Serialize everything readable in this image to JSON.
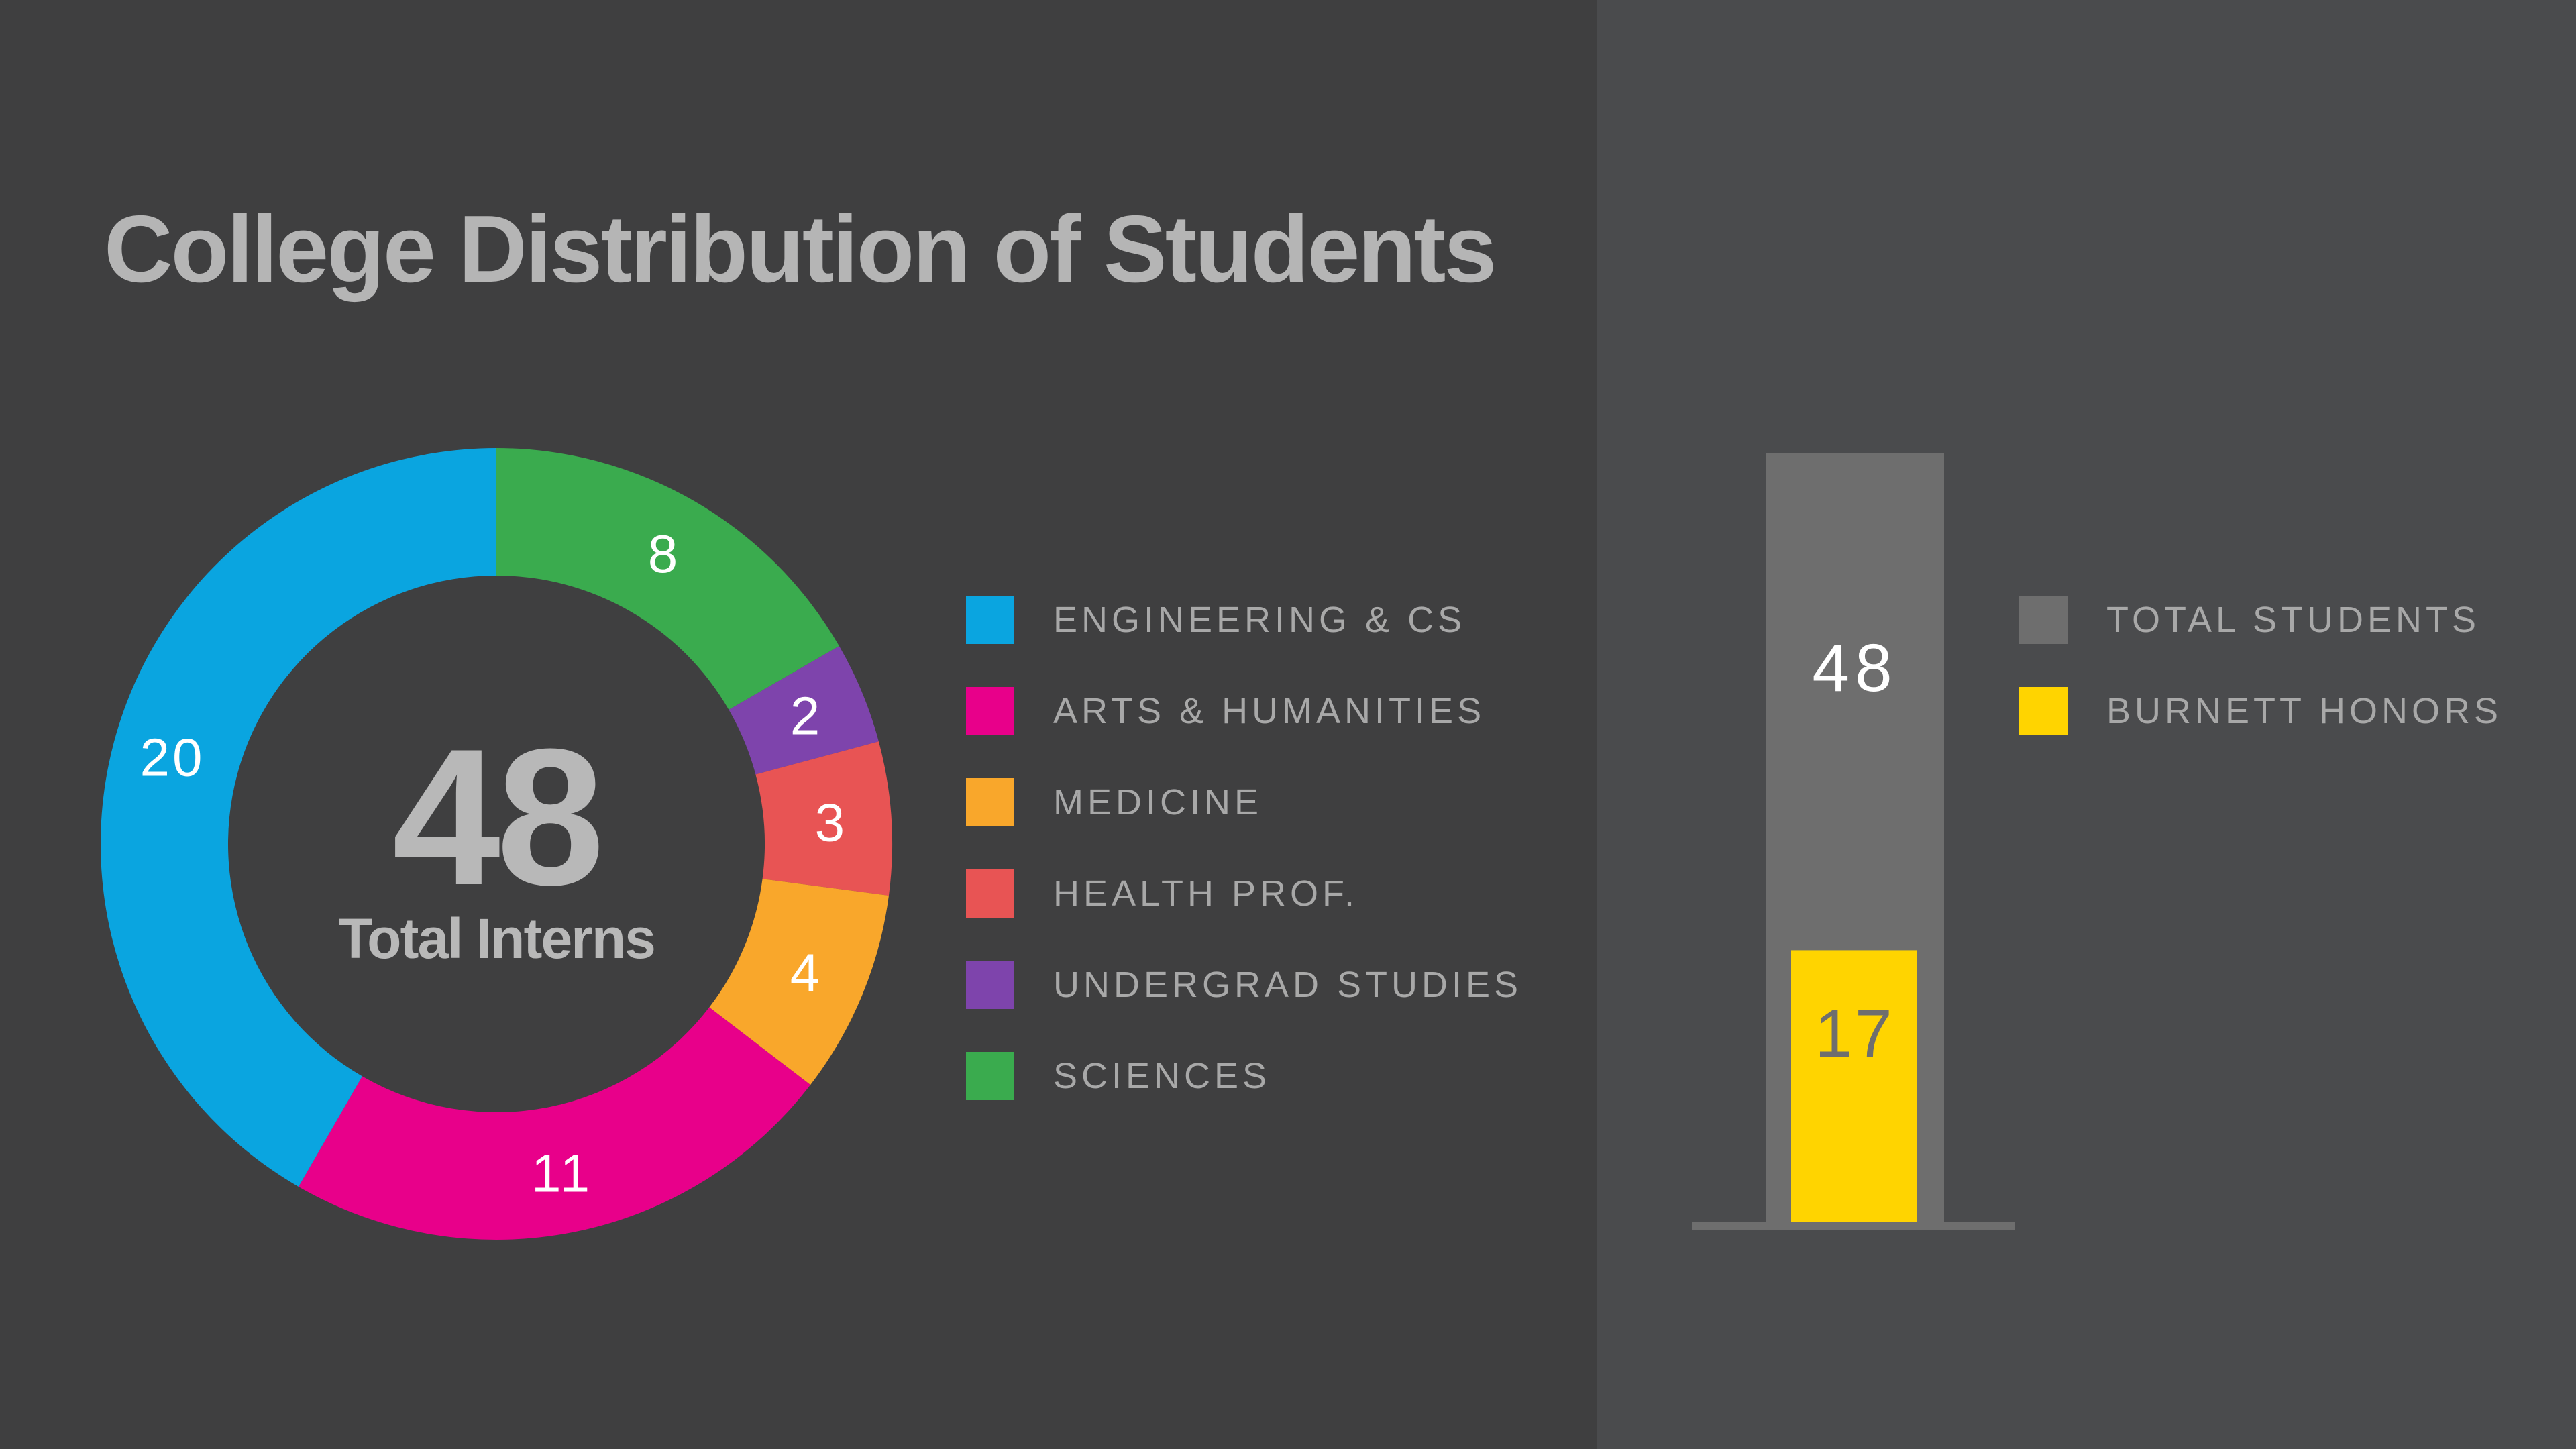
{
  "title": "College Distribution of Students",
  "chart_data": [
    {
      "type": "pie",
      "variant": "donut",
      "center_value": "48",
      "center_label": "Total Interns",
      "categories": [
        "ENGINEERING & CS",
        "ARTS & HUMANITIES",
        "MEDICINE",
        "HEALTH PROF.",
        "UNDERGRAD STUDIES",
        "SCIENCES"
      ],
      "values": [
        20,
        11,
        4,
        3,
        2,
        8
      ],
      "colors": [
        "#0aa5e0",
        "#e8008a",
        "#f9a72b",
        "#e85454",
        "#7e44ac",
        "#3aab4e"
      ],
      "slice_order_clockwise_from_top": [
        "SCIENCES",
        "UNDERGRAD STUDIES",
        "HEALTH PROF.",
        "MEDICINE",
        "ARTS & HUMANITIES",
        "ENGINEERING & CS"
      ],
      "legend": "right"
    },
    {
      "type": "bar",
      "variant": "overlapping",
      "series": [
        {
          "name": "TOTAL STUDENTS",
          "values": [
            48
          ],
          "color": "#6e6e6e"
        },
        {
          "name": "BURNETT HONORS",
          "values": [
            17
          ],
          "color": "#ffd400"
        }
      ],
      "ylim": [
        0,
        48
      ],
      "legend": "right"
    }
  ]
}
